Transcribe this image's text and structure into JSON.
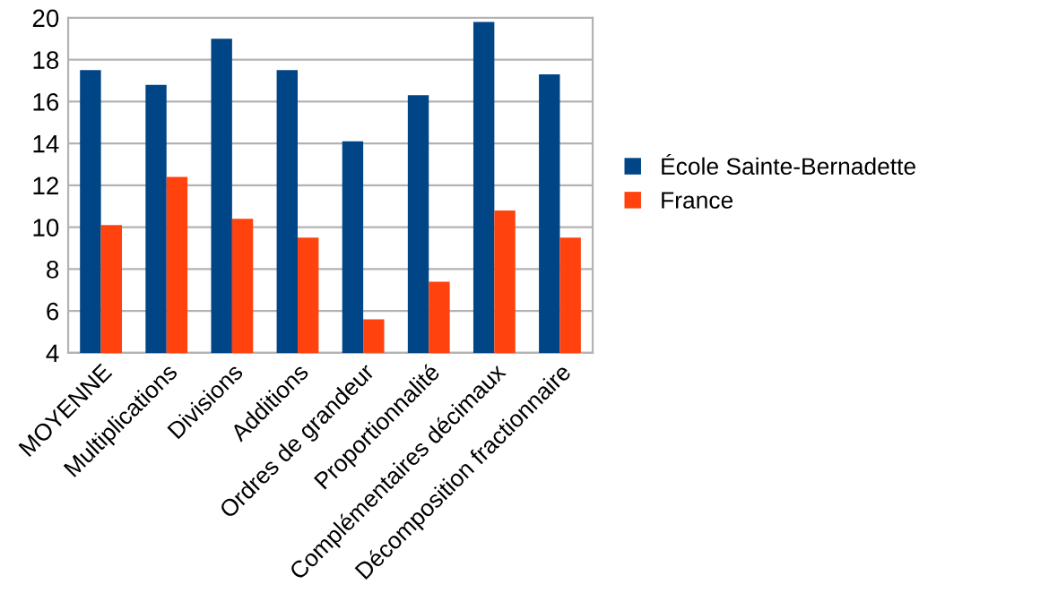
{
  "chart_data": {
    "type": "bar",
    "categories": [
      "MOYENNE",
      "Multiplications",
      "Divisions",
      "Additions",
      "Ordres de grandeur",
      "Proportionnalité",
      "Complémentaires décimaux",
      "Décomposition fractionnaire"
    ],
    "series": [
      {
        "name": "École Sainte-Bernadette",
        "color": "#004586",
        "values": [
          17.5,
          16.8,
          19.0,
          17.5,
          14.1,
          16.3,
          19.8,
          17.3
        ]
      },
      {
        "name": "France",
        "color": "#ff420e",
        "values": [
          10.1,
          12.4,
          10.4,
          9.5,
          5.6,
          7.4,
          10.8,
          9.5
        ]
      }
    ],
    "ylim": [
      4,
      20
    ],
    "yticks": [
      4,
      6,
      8,
      10,
      12,
      14,
      16,
      18,
      20
    ],
    "grid": "y",
    "legend": "right"
  }
}
